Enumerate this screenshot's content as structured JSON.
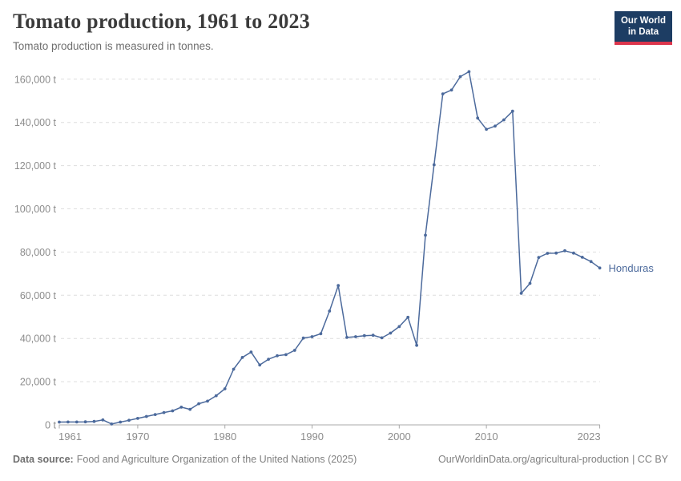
{
  "header": {
    "title": "Tomato production, 1961 to 2023",
    "subtitle": "Tomato production is measured in tonnes."
  },
  "logo": {
    "line1": "Our World",
    "line2": "in Data",
    "bg_color": "#1d3d63",
    "accent_color": "#dc354c"
  },
  "footer": {
    "source_label": "Data source:",
    "source_text": "Food and Agriculture Organization of the United Nations (2025)",
    "link_text": "OurWorldinData.org/agricultural-production",
    "license_text": "| CC BY"
  },
  "chart_data": {
    "type": "line",
    "title": "Tomato production, 1961 to 2023",
    "xlabel": "",
    "ylabel": "",
    "unit": "t",
    "grid": true,
    "legend_position": "end-of-line",
    "xlim": [
      1961,
      2023
    ],
    "ylim": [
      0,
      165000
    ],
    "xticks": [
      1961,
      1970,
      1980,
      1990,
      2000,
      2010,
      2023
    ],
    "yticks": [
      {
        "value": 0,
        "label": "0 t"
      },
      {
        "value": 20000,
        "label": "20,000 t"
      },
      {
        "value": 40000,
        "label": "40,000 t"
      },
      {
        "value": 60000,
        "label": "60,000 t"
      },
      {
        "value": 80000,
        "label": "80,000 t"
      },
      {
        "value": 100000,
        "label": "100,000 t"
      },
      {
        "value": 120000,
        "label": "120,000 t"
      },
      {
        "value": 140000,
        "label": "140,000 t"
      },
      {
        "value": 160000,
        "label": "160,000 t"
      }
    ],
    "x": [
      1961,
      1962,
      1963,
      1964,
      1965,
      1966,
      1967,
      1968,
      1969,
      1970,
      1971,
      1972,
      1973,
      1974,
      1975,
      1976,
      1977,
      1978,
      1979,
      1980,
      1981,
      1982,
      1983,
      1984,
      1985,
      1986,
      1987,
      1988,
      1989,
      1990,
      1991,
      1992,
      1993,
      1994,
      1995,
      1996,
      1997,
      1998,
      1999,
      2000,
      2001,
      2002,
      2003,
      2004,
      2005,
      2006,
      2007,
      2008,
      2009,
      2010,
      2011,
      2012,
      2013,
      2014,
      2015,
      2016,
      2017,
      2018,
      2019,
      2020,
      2021,
      2022,
      2023
    ],
    "series": [
      {
        "name": "Honduras",
        "color": "#4C6A9C",
        "values": [
          1310,
          1320,
          1340,
          1400,
          1600,
          2300,
          400,
          1300,
          2100,
          3000,
          3900,
          4800,
          5700,
          6500,
          8200,
          7200,
          9800,
          11000,
          13500,
          16700,
          25800,
          31200,
          33700,
          27700,
          30400,
          32000,
          32500,
          34500,
          40200,
          40800,
          42200,
          52700,
          64500,
          40500,
          40800,
          41300,
          41500,
          40300,
          42500,
          45500,
          49800,
          36800,
          87800,
          120400,
          153200,
          155000,
          161200,
          163500,
          142000,
          136800,
          138300,
          141200,
          145200,
          60900,
          65500,
          77500,
          79400,
          79500,
          80600,
          79500,
          77600,
          75600,
          72600
        ]
      }
    ]
  }
}
